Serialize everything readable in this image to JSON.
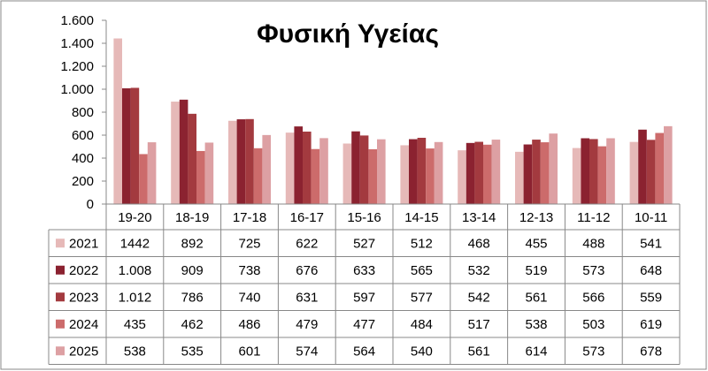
{
  "chart_data": {
    "type": "bar",
    "title": "Φυσική Υγείας",
    "categories": [
      "19-20",
      "18-19",
      "17-18",
      "16-17",
      "15-16",
      "14-15",
      "13-14",
      "12-13",
      "11-12",
      "10-11"
    ],
    "ylim": [
      0,
      1600
    ],
    "yticks": [
      0,
      200,
      400,
      600,
      800,
      1000,
      1200,
      1400,
      1600
    ],
    "ytick_labels": [
      "0",
      "200",
      "400",
      "600",
      "800",
      "1.000",
      "1.200",
      "1.400",
      "1.600"
    ],
    "grid": false,
    "legend": "data-table",
    "series": [
      {
        "name": "2021",
        "color": "#e6b9b8",
        "values": [
          1442,
          892,
          725,
          622,
          527,
          512,
          468,
          455,
          488,
          541
        ],
        "labels": [
          "1442",
          "892",
          "725",
          "622",
          "527",
          "512",
          "468",
          "455",
          "488",
          "541"
        ]
      },
      {
        "name": "2022",
        "color": "#8b2230",
        "values": [
          1008,
          909,
          738,
          676,
          633,
          565,
          532,
          519,
          573,
          648
        ],
        "labels": [
          "1.008",
          "909",
          "738",
          "676",
          "633",
          "565",
          "532",
          "519",
          "573",
          "648"
        ]
      },
      {
        "name": "2023",
        "color": "#a33a3f",
        "values": [
          1012,
          786,
          740,
          631,
          597,
          577,
          542,
          561,
          566,
          559
        ],
        "labels": [
          "1.012",
          "786",
          "740",
          "631",
          "597",
          "577",
          "542",
          "561",
          "566",
          "559"
        ]
      },
      {
        "name": "2024",
        "color": "#cc6b6b",
        "values": [
          435,
          462,
          486,
          479,
          477,
          484,
          517,
          538,
          503,
          619
        ],
        "labels": [
          "435",
          "462",
          "486",
          "479",
          "477",
          "484",
          "517",
          "538",
          "503",
          "619"
        ]
      },
      {
        "name": "2025",
        "color": "#dda0a3",
        "values": [
          538,
          535,
          601,
          574,
          564,
          540,
          561,
          614,
          573,
          678
        ],
        "labels": [
          "538",
          "535",
          "601",
          "574",
          "564",
          "540",
          "561",
          "614",
          "573",
          "678"
        ]
      }
    ]
  }
}
